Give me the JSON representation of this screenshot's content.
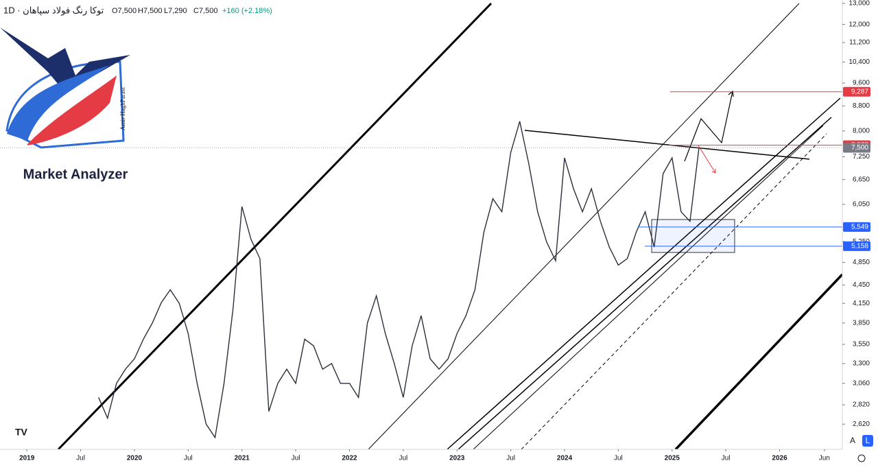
{
  "header": {
    "symbol": "توکا رنگ فولاد سپاهان · 1D",
    "ohlc": [
      "O7,500",
      "H7,500",
      "L7,290",
      "C7,500"
    ],
    "change": "+160 (+2.18%)"
  },
  "logo": {
    "title": "Market Analyzer",
    "author": "Amir HaghParast"
  },
  "controls": [
    "A",
    "L"
  ],
  "chart_data": {
    "type": "line",
    "log_scale": true,
    "color": "#2a2e39",
    "x": [
      "2019-09",
      "2019-10",
      "2019-11",
      "2019-12",
      "2020-01",
      "2020-02",
      "2020-03",
      "2020-04",
      "2020-05",
      "2020-06",
      "2020-07",
      "2020-08",
      "2020-09",
      "2020-10",
      "2020-11",
      "2020-12",
      "2021-01",
      "2021-02",
      "2021-03",
      "2021-04",
      "2021-05",
      "2021-06",
      "2021-07",
      "2021-08",
      "2021-09",
      "2021-10",
      "2021-11",
      "2021-12",
      "2022-01",
      "2022-02",
      "2022-03",
      "2022-04",
      "2022-05",
      "2022-06",
      "2022-07",
      "2022-08",
      "2022-09",
      "2022-10",
      "2022-11",
      "2022-12",
      "2023-01",
      "2023-02",
      "2023-03",
      "2023-04",
      "2023-05",
      "2023-06",
      "2023-07",
      "2023-08",
      "2023-09",
      "2023-10",
      "2023-11",
      "2023-12",
      "2024-01",
      "2024-02",
      "2024-03",
      "2024-04",
      "2024-05",
      "2024-06",
      "2024-07",
      "2024-08",
      "2024-09",
      "2024-10",
      "2024-11",
      "2024-12",
      "2025-01",
      "2025-02",
      "2025-03",
      "2025-04"
    ],
    "values": [
      2900,
      2680,
      3060,
      3230,
      3360,
      3620,
      3850,
      4160,
      4370,
      4150,
      3700,
      3060,
      2620,
      2490,
      3060,
      4060,
      6000,
      5300,
      4920,
      2750,
      3060,
      3230,
      3060,
      3620,
      3530,
      3230,
      3300,
      3060,
      3060,
      2900,
      3850,
      4270,
      3700,
      3300,
      2900,
      3530,
      3960,
      3360,
      3230,
      3360,
      3700,
      3960,
      4370,
      5440,
      6180,
      5880,
      7370,
      8300,
      7070,
      5880,
      5240,
      4880,
      7220,
      6420,
      5880,
      6420,
      5670,
      5140,
      4800,
      4920,
      5440,
      5880,
      5140,
      6800,
      7220,
      5880,
      5670,
      7500
    ],
    "xlim": [
      "2018-10",
      "2026-08"
    ],
    "xticks": [
      {
        "value": "2019-01",
        "label": "2019"
      },
      {
        "value": "2019-07",
        "label": "Jul"
      },
      {
        "value": "2020-01",
        "label": "2020"
      },
      {
        "value": "2020-07",
        "label": "Jul"
      },
      {
        "value": "2021-01",
        "label": "2021"
      },
      {
        "value": "2021-07",
        "label": "Jul"
      },
      {
        "value": "2022-01",
        "label": "2022"
      },
      {
        "value": "2022-07",
        "label": "Jul"
      },
      {
        "value": "2023-01",
        "label": "2023"
      },
      {
        "value": "2023-07",
        "label": "Jul"
      },
      {
        "value": "2024-01",
        "label": "2024"
      },
      {
        "value": "2024-07",
        "label": "Jul"
      },
      {
        "value": "2025-01",
        "label": "2025"
      },
      {
        "value": "2025-07",
        "label": "Jul"
      },
      {
        "value": "2026-01",
        "label": "2026"
      },
      {
        "value": "2026-06",
        "label": "Jun"
      }
    ],
    "ylim": [
      2380,
      13170
    ],
    "yticks": [
      {
        "value": 2620,
        "label": "2,620"
      },
      {
        "value": 2820,
        "label": "2,820"
      },
      {
        "value": 3060,
        "label": "3,060"
      },
      {
        "value": 3300,
        "label": "3,300"
      },
      {
        "value": 3550,
        "label": "3,550"
      },
      {
        "value": 3850,
        "label": "3,850"
      },
      {
        "value": 4150,
        "label": "4,150"
      },
      {
        "value": 4450,
        "label": "4,450"
      },
      {
        "value": 4850,
        "label": "4,850"
      },
      {
        "value": 5250,
        "label": "5,250"
      },
      {
        "value": 6050,
        "label": "6,050"
      },
      {
        "value": 6650,
        "label": "6,650"
      },
      {
        "value": 7250,
        "label": "7,250"
      },
      {
        "value": 8000,
        "label": "8,000"
      },
      {
        "value": 8800,
        "label": "8,800"
      },
      {
        "value": 9600,
        "label": "9,600"
      },
      {
        "value": 10400,
        "label": "10,400"
      },
      {
        "value": 11200,
        "label": "11,200"
      },
      {
        "value": 12000,
        "label": "12,000"
      },
      {
        "value": 13000,
        "label": "13,000"
      }
    ],
    "levels": [
      {
        "value": 9287,
        "label": "9,287",
        "color": "#e53b44"
      },
      {
        "value": 7577,
        "label": "7,577",
        "color": "#e53b44"
      },
      {
        "value": 7500,
        "label": "7,500",
        "color": "#787b86"
      },
      {
        "value": 5549,
        "label": "5,549",
        "color": "#2962ff"
      },
      {
        "value": 5158,
        "label": "5,158",
        "color": "#2962ff"
      }
    ]
  }
}
